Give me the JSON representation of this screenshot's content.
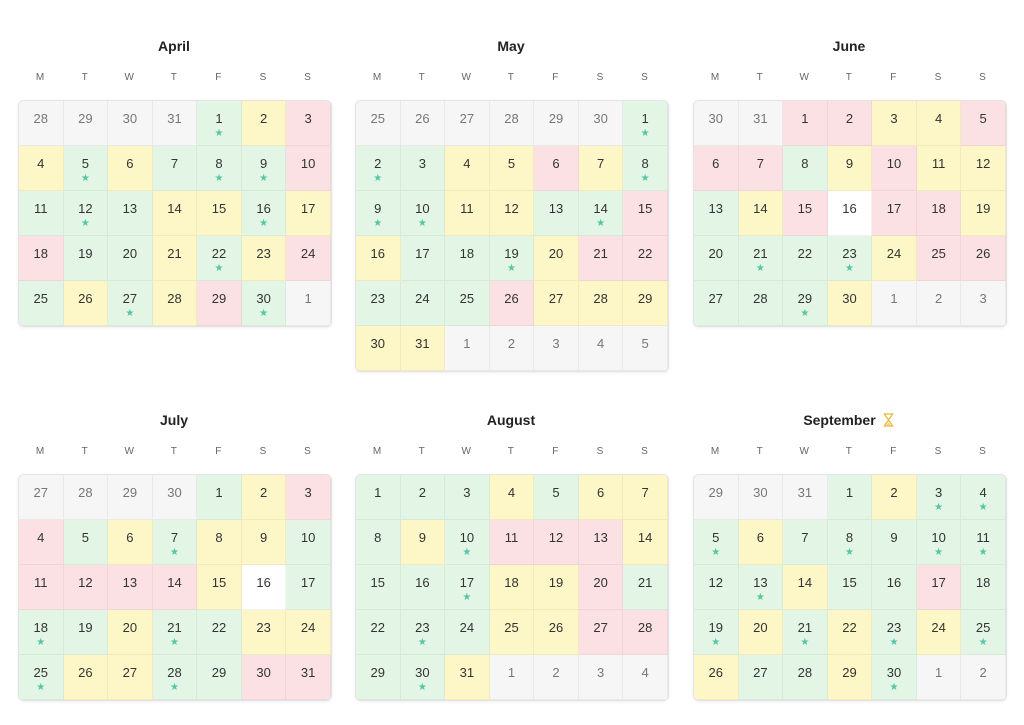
{
  "weekday_labels": [
    "M",
    "T",
    "W",
    "T",
    "F",
    "S",
    "S"
  ],
  "star_glyph": "★",
  "colors": {
    "green": "#e3f6e6",
    "yellow": "#fdf7c7",
    "red": "#fbe1e4",
    "grey": "#f6f6f6",
    "white": "#ffffff",
    "star": "#55c6a4"
  },
  "months": [
    {
      "name": "April",
      "weeks": [
        [
          [
            "28",
            "o",
            0
          ],
          [
            "29",
            "o",
            0
          ],
          [
            "30",
            "o",
            0
          ],
          [
            "31",
            "o",
            0
          ],
          [
            "1",
            "g",
            1
          ],
          [
            "2",
            "y",
            0
          ],
          [
            "3",
            "r",
            0
          ]
        ],
        [
          [
            "4",
            "y",
            0
          ],
          [
            "5",
            "g",
            1
          ],
          [
            "6",
            "y",
            0
          ],
          [
            "7",
            "g",
            0
          ],
          [
            "8",
            "g",
            1
          ],
          [
            "9",
            "g",
            1
          ],
          [
            "10",
            "r",
            0
          ]
        ],
        [
          [
            "11",
            "g",
            0
          ],
          [
            "12",
            "g",
            1
          ],
          [
            "13",
            "g",
            0
          ],
          [
            "14",
            "y",
            0
          ],
          [
            "15",
            "y",
            0
          ],
          [
            "16",
            "g",
            1
          ],
          [
            "17",
            "y",
            0
          ]
        ],
        [
          [
            "18",
            "r",
            0
          ],
          [
            "19",
            "g",
            0
          ],
          [
            "20",
            "g",
            0
          ],
          [
            "21",
            "y",
            0
          ],
          [
            "22",
            "g",
            1
          ],
          [
            "23",
            "y",
            0
          ],
          [
            "24",
            "r",
            0
          ]
        ],
        [
          [
            "25",
            "g",
            0
          ],
          [
            "26",
            "y",
            0
          ],
          [
            "27",
            "g",
            1
          ],
          [
            "28",
            "y",
            0
          ],
          [
            "29",
            "r",
            0
          ],
          [
            "30",
            "g",
            1
          ],
          [
            "1",
            "o",
            0
          ]
        ]
      ]
    },
    {
      "name": "May",
      "weeks": [
        [
          [
            "25",
            "o",
            0
          ],
          [
            "26",
            "o",
            0
          ],
          [
            "27",
            "o",
            0
          ],
          [
            "28",
            "o",
            0
          ],
          [
            "29",
            "o",
            0
          ],
          [
            "30",
            "o",
            0
          ],
          [
            "1",
            "g",
            1
          ]
        ],
        [
          [
            "2",
            "g",
            1
          ],
          [
            "3",
            "g",
            0
          ],
          [
            "4",
            "y",
            0
          ],
          [
            "5",
            "y",
            0
          ],
          [
            "6",
            "r",
            0
          ],
          [
            "7",
            "y",
            0
          ],
          [
            "8",
            "g",
            1
          ]
        ],
        [
          [
            "9",
            "g",
            1
          ],
          [
            "10",
            "g",
            1
          ],
          [
            "11",
            "y",
            0
          ],
          [
            "12",
            "y",
            0
          ],
          [
            "13",
            "g",
            0
          ],
          [
            "14",
            "g",
            1
          ],
          [
            "15",
            "r",
            0
          ]
        ],
        [
          [
            "16",
            "y",
            0
          ],
          [
            "17",
            "g",
            0
          ],
          [
            "18",
            "g",
            0
          ],
          [
            "19",
            "g",
            1
          ],
          [
            "20",
            "y",
            0
          ],
          [
            "21",
            "r",
            0
          ],
          [
            "22",
            "r",
            0
          ]
        ],
        [
          [
            "23",
            "g",
            0
          ],
          [
            "24",
            "g",
            0
          ],
          [
            "25",
            "g",
            0
          ],
          [
            "26",
            "r",
            0
          ],
          [
            "27",
            "y",
            0
          ],
          [
            "28",
            "y",
            0
          ],
          [
            "29",
            "y",
            0
          ]
        ],
        [
          [
            "30",
            "y",
            0
          ],
          [
            "31",
            "y",
            0
          ],
          [
            "1",
            "o",
            0
          ],
          [
            "2",
            "o",
            0
          ],
          [
            "3",
            "o",
            0
          ],
          [
            "4",
            "o",
            0
          ],
          [
            "5",
            "o",
            0
          ]
        ]
      ]
    },
    {
      "name": "June",
      "weeks": [
        [
          [
            "30",
            "o",
            0
          ],
          [
            "31",
            "o",
            0
          ],
          [
            "1",
            "r",
            0
          ],
          [
            "2",
            "r",
            0
          ],
          [
            "3",
            "y",
            0
          ],
          [
            "4",
            "y",
            0
          ],
          [
            "5",
            "r",
            0
          ]
        ],
        [
          [
            "6",
            "r",
            0
          ],
          [
            "7",
            "r",
            0
          ],
          [
            "8",
            "g",
            0
          ],
          [
            "9",
            "y",
            0
          ],
          [
            "10",
            "r",
            0
          ],
          [
            "11",
            "y",
            0
          ],
          [
            "12",
            "y",
            0
          ]
        ],
        [
          [
            "13",
            "g",
            0
          ],
          [
            "14",
            "y",
            0
          ],
          [
            "15",
            "r",
            0
          ],
          [
            "16",
            "w",
            0
          ],
          [
            "17",
            "r",
            0
          ],
          [
            "18",
            "r",
            0
          ],
          [
            "19",
            "y",
            0
          ]
        ],
        [
          [
            "20",
            "g",
            0
          ],
          [
            "21",
            "g",
            1
          ],
          [
            "22",
            "g",
            0
          ],
          [
            "23",
            "g",
            1
          ],
          [
            "24",
            "y",
            0
          ],
          [
            "25",
            "r",
            0
          ],
          [
            "26",
            "r",
            0
          ]
        ],
        [
          [
            "27",
            "g",
            0
          ],
          [
            "28",
            "g",
            0
          ],
          [
            "29",
            "g",
            1
          ],
          [
            "30",
            "y",
            0
          ],
          [
            "1",
            "o",
            0
          ],
          [
            "2",
            "o",
            0
          ],
          [
            "3",
            "o",
            0
          ]
        ]
      ]
    },
    {
      "name": "July",
      "weeks": [
        [
          [
            "27",
            "o",
            0
          ],
          [
            "28",
            "o",
            0
          ],
          [
            "29",
            "o",
            0
          ],
          [
            "30",
            "o",
            0
          ],
          [
            "1",
            "g",
            0
          ],
          [
            "2",
            "y",
            0
          ],
          [
            "3",
            "r",
            0
          ]
        ],
        [
          [
            "4",
            "r",
            0
          ],
          [
            "5",
            "g",
            0
          ],
          [
            "6",
            "y",
            0
          ],
          [
            "7",
            "g",
            1
          ],
          [
            "8",
            "y",
            0
          ],
          [
            "9",
            "y",
            0
          ],
          [
            "10",
            "g",
            0
          ]
        ],
        [
          [
            "11",
            "r",
            0
          ],
          [
            "12",
            "r",
            0
          ],
          [
            "13",
            "r",
            0
          ],
          [
            "14",
            "r",
            0
          ],
          [
            "15",
            "y",
            0
          ],
          [
            "16",
            "w",
            0
          ],
          [
            "17",
            "g",
            0
          ]
        ],
        [
          [
            "18",
            "g",
            1
          ],
          [
            "19",
            "g",
            0
          ],
          [
            "20",
            "y",
            0
          ],
          [
            "21",
            "g",
            1
          ],
          [
            "22",
            "g",
            0
          ],
          [
            "23",
            "y",
            0
          ],
          [
            "24",
            "y",
            0
          ]
        ],
        [
          [
            "25",
            "g",
            1
          ],
          [
            "26",
            "y",
            0
          ],
          [
            "27",
            "y",
            0
          ],
          [
            "28",
            "g",
            1
          ],
          [
            "29",
            "g",
            0
          ],
          [
            "30",
            "r",
            0
          ],
          [
            "31",
            "r",
            0
          ]
        ]
      ]
    },
    {
      "name": "August",
      "weeks": [
        [
          [
            "1",
            "g",
            0
          ],
          [
            "2",
            "g",
            0
          ],
          [
            "3",
            "g",
            0
          ],
          [
            "4",
            "y",
            0
          ],
          [
            "5",
            "g",
            0
          ],
          [
            "6",
            "y",
            0
          ],
          [
            "7",
            "y",
            0
          ]
        ],
        [
          [
            "8",
            "g",
            0
          ],
          [
            "9",
            "y",
            0
          ],
          [
            "10",
            "g",
            1
          ],
          [
            "11",
            "r",
            0
          ],
          [
            "12",
            "r",
            0
          ],
          [
            "13",
            "r",
            0
          ],
          [
            "14",
            "y",
            0
          ]
        ],
        [
          [
            "15",
            "g",
            0
          ],
          [
            "16",
            "g",
            0
          ],
          [
            "17",
            "g",
            1
          ],
          [
            "18",
            "y",
            0
          ],
          [
            "19",
            "y",
            0
          ],
          [
            "20",
            "r",
            0
          ],
          [
            "21",
            "g",
            0
          ]
        ],
        [
          [
            "22",
            "g",
            0
          ],
          [
            "23",
            "g",
            1
          ],
          [
            "24",
            "g",
            0
          ],
          [
            "25",
            "y",
            0
          ],
          [
            "26",
            "y",
            0
          ],
          [
            "27",
            "r",
            0
          ],
          [
            "28",
            "r",
            0
          ]
        ],
        [
          [
            "29",
            "g",
            0
          ],
          [
            "30",
            "g",
            1
          ],
          [
            "31",
            "y",
            0
          ],
          [
            "1",
            "o",
            0
          ],
          [
            "2",
            "o",
            0
          ],
          [
            "3",
            "o",
            0
          ],
          [
            "4",
            "o",
            0
          ]
        ]
      ]
    },
    {
      "name": "September",
      "icon": "hourglass-icon",
      "weeks": [
        [
          [
            "29",
            "o",
            0
          ],
          [
            "30",
            "o",
            0
          ],
          [
            "31",
            "o",
            0
          ],
          [
            "1",
            "g",
            0
          ],
          [
            "2",
            "y",
            0
          ],
          [
            "3",
            "g",
            1
          ],
          [
            "4",
            "g",
            1
          ]
        ],
        [
          [
            "5",
            "g",
            1
          ],
          [
            "6",
            "y",
            0
          ],
          [
            "7",
            "g",
            0
          ],
          [
            "8",
            "g",
            1
          ],
          [
            "9",
            "g",
            0
          ],
          [
            "10",
            "g",
            1
          ],
          [
            "11",
            "g",
            1
          ]
        ],
        [
          [
            "12",
            "g",
            0
          ],
          [
            "13",
            "g",
            1
          ],
          [
            "14",
            "y",
            0
          ],
          [
            "15",
            "g",
            0
          ],
          [
            "16",
            "g",
            0
          ],
          [
            "17",
            "r",
            0
          ],
          [
            "18",
            "g",
            0
          ]
        ],
        [
          [
            "19",
            "g",
            1
          ],
          [
            "20",
            "y",
            0
          ],
          [
            "21",
            "g",
            1
          ],
          [
            "22",
            "y",
            0
          ],
          [
            "23",
            "g",
            1
          ],
          [
            "24",
            "y",
            0
          ],
          [
            "25",
            "g",
            1
          ]
        ],
        [
          [
            "26",
            "y",
            0
          ],
          [
            "27",
            "g",
            0
          ],
          [
            "28",
            "g",
            0
          ],
          [
            "29",
            "y",
            0
          ],
          [
            "30",
            "g",
            1
          ],
          [
            "1",
            "o",
            0
          ],
          [
            "2",
            "o",
            0
          ]
        ]
      ]
    }
  ]
}
